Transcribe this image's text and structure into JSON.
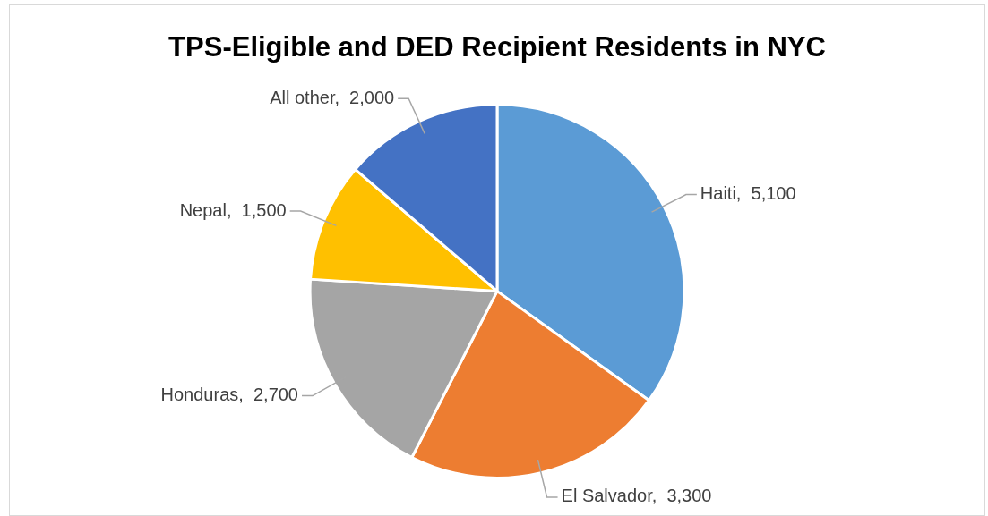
{
  "chart_data": {
    "type": "pie",
    "title": "TPS-Eligible and DED Recipient Residents in NYC",
    "categories": [
      "Haiti",
      "El Salvador",
      "Honduras",
      "Nepal",
      "All other"
    ],
    "values": [
      5100,
      3300,
      2700,
      1500,
      2000
    ],
    "colors": [
      "#5b9bd5",
      "#ed7d31",
      "#a5a5a5",
      "#ffc000",
      "#4472c4"
    ],
    "value_labels": [
      ",  5,100",
      ",  3,300",
      ",  2,700",
      ",  1,500",
      ",  2,000"
    ]
  }
}
